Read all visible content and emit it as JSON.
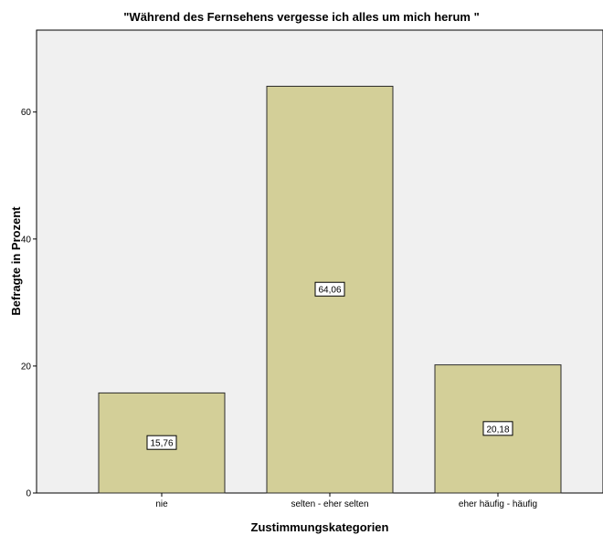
{
  "chart_data": {
    "type": "bar",
    "title": "\"Während des Fernsehens vergesse ich alles um mich herum \"",
    "xlabel": "Zustimmungskategorien",
    "ylabel": "Befragte in Prozent",
    "categories": [
      "nie",
      "selten - eher selten",
      "eher häufig - häufig"
    ],
    "values": [
      15.76,
      64.06,
      20.18
    ],
    "data_labels": [
      "15,76",
      "64,06",
      "20,18"
    ],
    "yticks": [
      0,
      20,
      40,
      60
    ],
    "ytick_labels": [
      "0",
      "20",
      "40",
      "60"
    ],
    "ylim": [
      0,
      72.9
    ],
    "grid": false,
    "colors": {
      "bar_fill": "#d3cf98",
      "bar_stroke": "#2b2b2b",
      "plot_background": "#f0f0f0",
      "axis": "#000000"
    }
  }
}
